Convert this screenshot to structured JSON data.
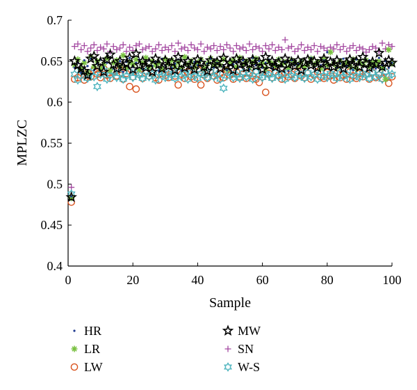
{
  "chart_data": {
    "type": "scatter",
    "title": "",
    "xlabel": "Sample",
    "ylabel": "MPLZC",
    "xlim": [
      0,
      100
    ],
    "ylim": [
      0.4,
      0.7
    ],
    "xticks": [
      0,
      20,
      40,
      60,
      80,
      100
    ],
    "yticks": [
      0.4,
      0.45,
      0.5,
      0.55,
      0.6,
      0.65,
      0.7
    ],
    "ytick_labels": [
      "0.4",
      "0.45",
      "0.5",
      "0.55",
      "0.6",
      "0.65",
      "0.7"
    ],
    "grid": false,
    "legend_position": "bottom",
    "x": [
      1,
      2,
      3,
      4,
      5,
      6,
      7,
      8,
      9,
      10,
      11,
      12,
      13,
      14,
      15,
      16,
      17,
      18,
      19,
      20,
      21,
      22,
      23,
      24,
      25,
      26,
      27,
      28,
      29,
      30,
      31,
      32,
      33,
      34,
      35,
      36,
      37,
      38,
      39,
      40,
      41,
      42,
      43,
      44,
      45,
      46,
      47,
      48,
      49,
      50,
      51,
      52,
      53,
      54,
      55,
      56,
      57,
      58,
      59,
      60,
      61,
      62,
      63,
      64,
      65,
      66,
      67,
      68,
      69,
      70,
      71,
      72,
      73,
      74,
      75,
      76,
      77,
      78,
      79,
      80,
      81,
      82,
      83,
      84,
      85,
      86,
      87,
      88,
      89,
      90,
      91,
      92,
      93,
      94,
      95,
      96,
      97,
      98,
      99,
      100
    ],
    "series": [
      {
        "name": "HR",
        "marker": "dot",
        "color": "#1f3a8f",
        "values": [
          0.485,
          0.642,
          0.648,
          0.636,
          0.651,
          0.644,
          0.653,
          0.639,
          0.647,
          0.652,
          0.643,
          0.648,
          0.655,
          0.641,
          0.646,
          0.65,
          0.637,
          0.649,
          0.654,
          0.643,
          0.648,
          0.652,
          0.64,
          0.646,
          0.651,
          0.644,
          0.649,
          0.638,
          0.653,
          0.645,
          0.65,
          0.642,
          0.647,
          0.652,
          0.639,
          0.648,
          0.654,
          0.643,
          0.649,
          0.645,
          0.651,
          0.64,
          0.647,
          0.653,
          0.642,
          0.648,
          0.65,
          0.644,
          0.639,
          0.652,
          0.646,
          0.649,
          0.643,
          0.651,
          0.647,
          0.64,
          0.654,
          0.645,
          0.65,
          0.642,
          0.648,
          0.652,
          0.641,
          0.646,
          0.653,
          0.644,
          0.649,
          0.638,
          0.651,
          0.645,
          0.647,
          0.652,
          0.64,
          0.649,
          0.654,
          0.643,
          0.648,
          0.645,
          0.651,
          0.661,
          0.646,
          0.65,
          0.642,
          0.647,
          0.653,
          0.644,
          0.649,
          0.639,
          0.652,
          0.646,
          0.648,
          0.643,
          0.651,
          0.647,
          0.641,
          0.654,
          0.645,
          0.65,
          0.642,
          0.648
        ]
      },
      {
        "name": "LR",
        "marker": "asterisk",
        "color": "#7ac142",
        "values": [
          0.483,
          0.645,
          0.652,
          0.64,
          0.648,
          0.636,
          0.655,
          0.643,
          0.65,
          0.641,
          0.646,
          0.653,
          0.639,
          0.648,
          0.651,
          0.644,
          0.657,
          0.642,
          0.649,
          0.646,
          0.652,
          0.64,
          0.648,
          0.654,
          0.643,
          0.65,
          0.645,
          0.648,
          0.641,
          0.652,
          0.647,
          0.651,
          0.644,
          0.649,
          0.642,
          0.655,
          0.646,
          0.65,
          0.643,
          0.648,
          0.652,
          0.641,
          0.647,
          0.653,
          0.644,
          0.649,
          0.645,
          0.652,
          0.64,
          0.648,
          0.651,
          0.643,
          0.654,
          0.646,
          0.65,
          0.642,
          0.649,
          0.653,
          0.645,
          0.648,
          0.641,
          0.65,
          0.647,
          0.644,
          0.652,
          0.646,
          0.649,
          0.642,
          0.651,
          0.648,
          0.645,
          0.65,
          0.643,
          0.647,
          0.653,
          0.646,
          0.649,
          0.641,
          0.652,
          0.645,
          0.661,
          0.647,
          0.643,
          0.65,
          0.646,
          0.648,
          0.644,
          0.652,
          0.641,
          0.649,
          0.646,
          0.651,
          0.643,
          0.648,
          0.645,
          0.65,
          0.642,
          0.628,
          0.664,
          0.647
        ]
      },
      {
        "name": "LW",
        "marker": "circle",
        "color": "#d9531e",
        "values": [
          0.478,
          0.628,
          0.63,
          0.633,
          0.627,
          0.636,
          0.631,
          0.639,
          0.634,
          0.63,
          0.641,
          0.633,
          0.629,
          0.637,
          0.632,
          0.64,
          0.628,
          0.635,
          0.619,
          0.631,
          0.616,
          0.634,
          0.629,
          0.638,
          0.632,
          0.636,
          0.63,
          0.627,
          0.635,
          0.633,
          0.63,
          0.638,
          0.632,
          0.621,
          0.634,
          0.629,
          0.637,
          0.631,
          0.628,
          0.64,
          0.621,
          0.633,
          0.629,
          0.636,
          0.632,
          0.627,
          0.635,
          0.63,
          0.639,
          0.633,
          0.628,
          0.637,
          0.631,
          0.634,
          0.629,
          0.636,
          0.632,
          0.628,
          0.624,
          0.631,
          0.612,
          0.635,
          0.63,
          0.637,
          0.633,
          0.628,
          0.636,
          0.631,
          0.634,
          0.629,
          0.638,
          0.632,
          0.63,
          0.635,
          0.628,
          0.633,
          0.637,
          0.631,
          0.629,
          0.636,
          0.632,
          0.627,
          0.635,
          0.63,
          0.633,
          0.628,
          0.637,
          0.632,
          0.629,
          0.635,
          0.631,
          0.634,
          0.628,
          0.636,
          0.63,
          0.633,
          0.629,
          0.637,
          0.623,
          0.631
        ]
      },
      {
        "name": "MW",
        "marker": "star",
        "color": "#000000",
        "values": [
          0.484,
          0.65,
          0.645,
          0.641,
          0.638,
          0.633,
          0.653,
          0.656,
          0.644,
          0.649,
          0.637,
          0.652,
          0.658,
          0.646,
          0.641,
          0.65,
          0.643,
          0.647,
          0.654,
          0.64,
          0.659,
          0.645,
          0.65,
          0.642,
          0.648,
          0.637,
          0.653,
          0.646,
          0.641,
          0.651,
          0.644,
          0.649,
          0.639,
          0.655,
          0.647,
          0.642,
          0.65,
          0.645,
          0.64,
          0.652,
          0.648,
          0.643,
          0.638,
          0.651,
          0.646,
          0.649,
          0.641,
          0.654,
          0.644,
          0.648,
          0.639,
          0.653,
          0.646,
          0.65,
          0.642,
          0.647,
          0.652,
          0.644,
          0.649,
          0.64,
          0.655,
          0.645,
          0.65,
          0.643,
          0.648,
          0.641,
          0.653,
          0.646,
          0.649,
          0.644,
          0.651,
          0.639,
          0.648,
          0.652,
          0.645,
          0.65,
          0.642,
          0.647,
          0.653,
          0.644,
          0.649,
          0.643,
          0.651,
          0.646,
          0.641,
          0.648,
          0.652,
          0.645,
          0.65,
          0.643,
          0.655,
          0.647,
          0.642,
          0.649,
          0.646,
          0.66,
          0.643,
          0.648,
          0.651,
          0.648
        ]
      },
      {
        "name": "SN",
        "marker": "plus",
        "color": "#a347a0",
        "values": [
          0.496,
          0.668,
          0.671,
          0.664,
          0.669,
          0.662,
          0.666,
          0.67,
          0.663,
          0.667,
          0.665,
          0.671,
          0.662,
          0.668,
          0.664,
          0.666,
          0.67,
          0.662,
          0.667,
          0.663,
          0.669,
          0.671,
          0.664,
          0.666,
          0.668,
          0.662,
          0.665,
          0.67,
          0.663,
          0.667,
          0.664,
          0.669,
          0.662,
          0.672,
          0.665,
          0.667,
          0.663,
          0.67,
          0.666,
          0.664,
          0.671,
          0.662,
          0.667,
          0.665,
          0.669,
          0.663,
          0.668,
          0.664,
          0.67,
          0.666,
          0.662,
          0.669,
          0.665,
          0.667,
          0.663,
          0.671,
          0.664,
          0.668,
          0.666,
          0.662,
          0.669,
          0.665,
          0.67,
          0.663,
          0.667,
          0.664,
          0.676,
          0.666,
          0.668,
          0.662,
          0.665,
          0.67,
          0.663,
          0.667,
          0.664,
          0.669,
          0.662,
          0.668,
          0.666,
          0.663,
          0.667,
          0.665,
          0.67,
          0.664,
          0.668,
          0.662,
          0.666,
          0.669,
          0.663,
          0.667,
          0.665,
          0.661,
          0.664,
          0.668,
          0.666,
          0.662,
          0.672,
          0.665,
          0.67,
          0.668
        ]
      },
      {
        "name": "W-S",
        "marker": "hexstar",
        "color": "#4bb3bd",
        "values": [
          0.488,
          0.634,
          0.627,
          0.638,
          0.632,
          0.629,
          0.636,
          0.631,
          0.619,
          0.634,
          0.639,
          0.628,
          0.633,
          0.637,
          0.63,
          0.635,
          0.628,
          0.632,
          0.637,
          0.63,
          0.635,
          0.633,
          0.629,
          0.638,
          0.631,
          0.634,
          0.627,
          0.636,
          0.632,
          0.63,
          0.635,
          0.633,
          0.629,
          0.637,
          0.631,
          0.634,
          0.628,
          0.636,
          0.632,
          0.629,
          0.635,
          0.633,
          0.63,
          0.637,
          0.631,
          0.634,
          0.628,
          0.617,
          0.632,
          0.635,
          0.63,
          0.633,
          0.629,
          0.636,
          0.631,
          0.634,
          0.628,
          0.637,
          0.632,
          0.63,
          0.635,
          0.633,
          0.629,
          0.636,
          0.631,
          0.634,
          0.628,
          0.637,
          0.632,
          0.63,
          0.635,
          0.633,
          0.629,
          0.636,
          0.631,
          0.634,
          0.628,
          0.637,
          0.632,
          0.63,
          0.635,
          0.633,
          0.629,
          0.636,
          0.631,
          0.634,
          0.628,
          0.637,
          0.632,
          0.63,
          0.635,
          0.633,
          0.629,
          0.636,
          0.631,
          0.634,
          0.628,
          0.637,
          0.632,
          0.634
        ]
      }
    ]
  }
}
